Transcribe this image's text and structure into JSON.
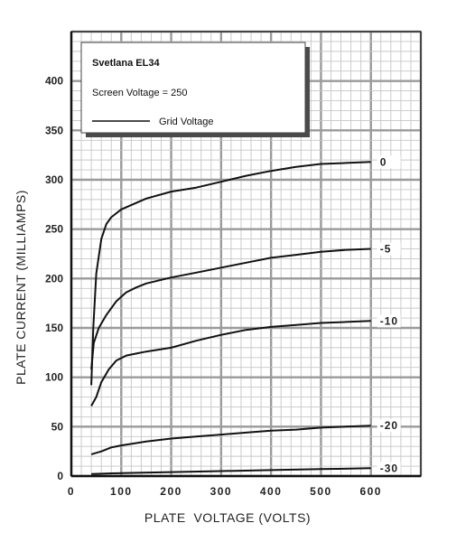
{
  "chart_data": {
    "type": "line",
    "title": "Svetlana EL34",
    "xlabel": "PLATE  VOLTAGE (VOLTS)",
    "ylabel": "PLATE CURRENT (MILLIAMPS)",
    "xlim": [
      0,
      700
    ],
    "ylim": [
      0,
      450
    ],
    "xticks": [
      0,
      100,
      200,
      300,
      400,
      500,
      600
    ],
    "xtick_labels": [
      "0",
      "100",
      "200",
      "300",
      "400",
      "500",
      "600"
    ],
    "yticks": [
      0,
      50,
      100,
      150,
      200,
      250,
      300,
      350,
      400
    ],
    "ytick_labels": [
      "0",
      "50",
      "100",
      "150",
      "200",
      "250",
      "300",
      "350",
      "400"
    ],
    "grid": true,
    "legend": {
      "placement": "top-left",
      "title": "Svetlana EL34",
      "subtitle": "Screen Voltage = 250",
      "entry": "Grid Voltage"
    },
    "series": [
      {
        "name": "0",
        "x": [
          40,
          44,
          50,
          60,
          70,
          80,
          100,
          150,
          200,
          250,
          300,
          350,
          400,
          450,
          500,
          550,
          600
        ],
        "values": [
          92,
          150,
          205,
          240,
          255,
          262,
          270,
          281,
          288,
          292,
          298,
          304,
          309,
          313,
          316,
          317,
          318
        ]
      },
      {
        "name": "-5",
        "x": [
          40,
          45,
          55,
          70,
          90,
          110,
          130,
          150,
          200,
          250,
          300,
          350,
          400,
          450,
          500,
          550,
          600
        ],
        "values": [
          108,
          135,
          150,
          163,
          177,
          186,
          191,
          195,
          201,
          206,
          211,
          216,
          221,
          224,
          227,
          229,
          230
        ]
      },
      {
        "name": "-10",
        "x": [
          40,
          50,
          60,
          75,
          90,
          110,
          130,
          150,
          200,
          250,
          300,
          350,
          400,
          450,
          500,
          550,
          600
        ],
        "values": [
          71,
          80,
          95,
          108,
          117,
          122,
          124,
          126,
          130,
          137,
          143,
          148,
          151,
          153,
          155,
          156,
          157
        ]
      },
      {
        "name": "-20",
        "x": [
          40,
          60,
          80,
          100,
          150,
          200,
          250,
          300,
          350,
          400,
          450,
          500,
          550,
          600
        ],
        "values": [
          22,
          25,
          29,
          31,
          35,
          38,
          40,
          42,
          44,
          46,
          47,
          49,
          50,
          51
        ]
      },
      {
        "name": "-30",
        "x": [
          40,
          100,
          200,
          300,
          400,
          500,
          600
        ],
        "values": [
          2,
          3,
          4,
          5,
          6,
          7,
          8
        ]
      }
    ]
  }
}
